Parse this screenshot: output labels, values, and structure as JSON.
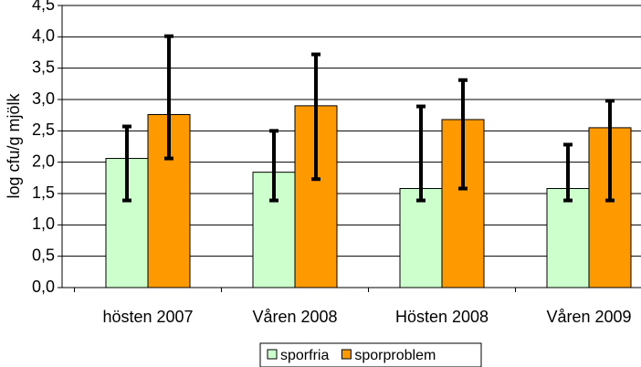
{
  "chart_data": {
    "type": "bar",
    "y_label": "log cfu/g mjölk",
    "categories": [
      "hösten 2007",
      "Våren 2008",
      "Hösten 2008",
      "Våren 2009"
    ],
    "series": [
      {
        "name": "sporfria",
        "color": "#ccffcc",
        "values": [
          2.06,
          1.84,
          1.58,
          1.58
        ],
        "error_minus": [
          0.67,
          0.45,
          0.19,
          0.19
        ],
        "error_plus": [
          0.51,
          0.66,
          1.31,
          0.7
        ]
      },
      {
        "name": "sporproblem",
        "color": "#ff9900",
        "values": [
          2.76,
          2.9,
          2.68,
          2.55
        ],
        "error_minus": [
          0.7,
          1.17,
          1.1,
          1.16
        ],
        "error_plus": [
          1.25,
          0.82,
          0.63,
          0.43
        ]
      }
    ],
    "ylim": [
      0,
      4.5
    ],
    "yticks": [
      {
        "value": 0,
        "label": "0,0"
      },
      {
        "value": 0.5,
        "label": "0,5"
      },
      {
        "value": 1,
        "label": "1,0"
      },
      {
        "value": 1.5,
        "label": "1,5"
      },
      {
        "value": 2,
        "label": "2,0"
      },
      {
        "value": 2.5,
        "label": "2,5"
      },
      {
        "value": 3,
        "label": "3,0"
      },
      {
        "value": 3.5,
        "label": "3,5"
      },
      {
        "value": 4,
        "label": "4,0"
      },
      {
        "value": 4.5,
        "label": "4,5"
      }
    ],
    "grid": true
  }
}
